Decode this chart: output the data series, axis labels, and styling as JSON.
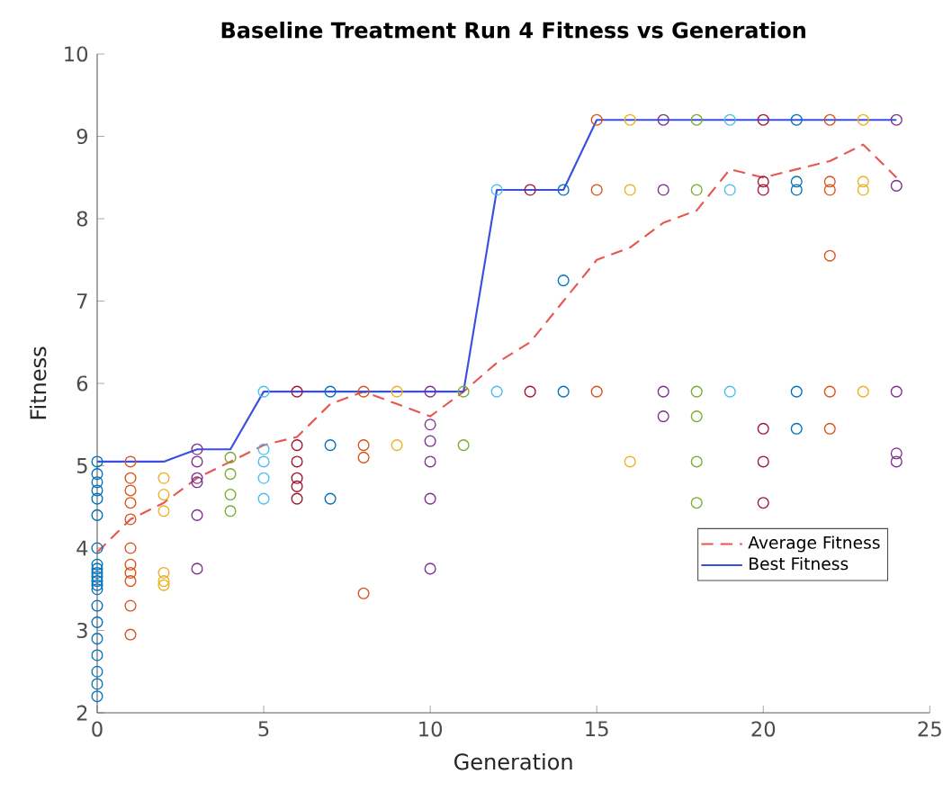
{
  "chart_data": {
    "type": "scatter",
    "title": "Baseline Treatment Run 4 Fitness vs Generation",
    "xlabel": "Generation",
    "ylabel": "Fitness",
    "xlim": [
      0,
      25
    ],
    "ylim": [
      2,
      10
    ],
    "xticks": [
      0,
      5,
      10,
      15,
      20,
      25
    ],
    "yticks": [
      2,
      3,
      4,
      5,
      6,
      7,
      8,
      9,
      10
    ],
    "legend": "bottom right",
    "grid": false,
    "series": [
      {
        "marker": "circle",
        "color": "#0072bd",
        "x": [
          0,
          0,
          0,
          0,
          0,
          0,
          0,
          0,
          0,
          0,
          0,
          0,
          0,
          0,
          0,
          0,
          0,
          0,
          0,
          0,
          0
        ],
        "values": [
          5.05,
          4.9,
          4.8,
          4.7,
          4.6,
          4.4,
          4.0,
          3.8,
          3.75,
          3.7,
          3.65,
          3.6,
          3.55,
          3.5,
          3.3,
          3.1,
          2.9,
          2.7,
          2.5,
          2.35,
          2.2
        ]
      },
      {
        "type": "scatter",
        "marker": "circle",
        "color": "#d95319",
        "x": [
          1,
          1,
          1,
          1,
          1,
          1,
          1,
          1,
          1,
          1,
          1
        ],
        "values": [
          5.05,
          4.85,
          4.7,
          4.55,
          4.35,
          4.0,
          3.8,
          3.7,
          3.6,
          3.3,
          2.95
        ]
      },
      {
        "type": "scatter",
        "marker": "circle",
        "color": "#edb120",
        "x": [
          2,
          2,
          2,
          2,
          2,
          2
        ],
        "values": [
          4.85,
          4.65,
          4.45,
          3.7,
          3.6,
          3.55
        ]
      },
      {
        "type": "scatter",
        "marker": "circle",
        "color": "#7e2f8e",
        "x": [
          3,
          3,
          3,
          3,
          3,
          3
        ],
        "values": [
          5.2,
          5.05,
          4.85,
          4.8,
          4.4,
          3.75
        ]
      },
      {
        "type": "scatter",
        "marker": "circle",
        "color": "#77ac30",
        "x": [
          4,
          4,
          4,
          4
        ],
        "values": [
          5.1,
          4.9,
          4.65,
          4.45
        ]
      },
      {
        "type": "scatter",
        "marker": "circle",
        "color": "#4dbeee",
        "x": [
          5,
          5,
          5,
          5,
          5
        ],
        "values": [
          5.9,
          5.2,
          5.05,
          4.85,
          4.6
        ]
      },
      {
        "type": "scatter",
        "marker": "circle",
        "color": "#a2142f",
        "x": [
          6,
          6,
          6,
          6,
          6,
          6
        ],
        "values": [
          5.9,
          5.25,
          5.05,
          4.85,
          4.75,
          4.6
        ]
      },
      {
        "type": "scatter",
        "marker": "circle",
        "color": "#0072bd",
        "x": [
          7,
          7,
          7
        ],
        "values": [
          5.9,
          5.25,
          4.6
        ]
      },
      {
        "type": "scatter",
        "marker": "circle",
        "color": "#d95319",
        "x": [
          8,
          8,
          8,
          8
        ],
        "values": [
          5.9,
          5.25,
          5.1,
          3.45
        ]
      },
      {
        "type": "scatter",
        "marker": "circle",
        "color": "#edb120",
        "x": [
          9,
          9
        ],
        "values": [
          5.9,
          5.25
        ]
      },
      {
        "type": "scatter",
        "marker": "circle",
        "color": "#7e2f8e",
        "x": [
          10,
          10,
          10,
          10,
          10,
          10
        ],
        "values": [
          5.9,
          5.5,
          5.3,
          5.05,
          4.6,
          3.75
        ]
      },
      {
        "type": "scatter",
        "marker": "circle",
        "color": "#77ac30",
        "x": [
          11,
          11
        ],
        "values": [
          5.9,
          5.25
        ]
      },
      {
        "type": "scatter",
        "marker": "circle",
        "color": "#4dbeee",
        "x": [
          12,
          12
        ],
        "values": [
          8.35,
          5.9
        ]
      },
      {
        "type": "scatter",
        "marker": "circle",
        "color": "#a2142f",
        "x": [
          13,
          13
        ],
        "values": [
          8.35,
          5.9
        ]
      },
      {
        "type": "scatter",
        "marker": "circle",
        "color": "#0072bd",
        "x": [
          14,
          14,
          14
        ],
        "values": [
          8.35,
          7.25,
          5.9
        ]
      },
      {
        "type": "scatter",
        "marker": "circle",
        "color": "#d95319",
        "x": [
          15,
          15,
          15
        ],
        "values": [
          9.2,
          8.35,
          5.9
        ]
      },
      {
        "type": "scatter",
        "marker": "circle",
        "color": "#edb120",
        "x": [
          16,
          16,
          16
        ],
        "values": [
          9.2,
          8.35,
          5.05
        ]
      },
      {
        "type": "scatter",
        "marker": "circle",
        "color": "#7e2f8e",
        "x": [
          17,
          17,
          17,
          17
        ],
        "values": [
          9.2,
          8.35,
          5.9,
          5.6
        ]
      },
      {
        "type": "scatter",
        "marker": "circle",
        "color": "#77ac30",
        "x": [
          18,
          18,
          18,
          18,
          18,
          18
        ],
        "values": [
          9.2,
          8.35,
          5.9,
          5.6,
          5.05,
          4.55
        ]
      },
      {
        "type": "scatter",
        "marker": "circle",
        "color": "#4dbeee",
        "x": [
          19,
          19,
          19
        ],
        "values": [
          9.2,
          8.35,
          5.9
        ]
      },
      {
        "type": "scatter",
        "marker": "circle",
        "color": "#a2142f",
        "x": [
          20,
          20,
          20,
          20,
          20,
          20
        ],
        "values": [
          9.2,
          8.45,
          8.35,
          5.45,
          5.05,
          4.55
        ]
      },
      {
        "type": "scatter",
        "marker": "circle",
        "color": "#0072bd",
        "x": [
          21,
          21,
          21,
          21,
          21
        ],
        "values": [
          9.2,
          8.45,
          8.35,
          5.9,
          5.45
        ]
      },
      {
        "type": "scatter",
        "marker": "circle",
        "color": "#d95319",
        "x": [
          22,
          22,
          22,
          22,
          22,
          22
        ],
        "values": [
          9.2,
          8.45,
          8.35,
          7.55,
          5.9,
          5.45
        ]
      },
      {
        "type": "scatter",
        "marker": "circle",
        "color": "#edb120",
        "x": [
          23,
          23,
          23,
          23
        ],
        "values": [
          9.2,
          8.45,
          8.35,
          5.9
        ]
      },
      {
        "type": "scatter",
        "marker": "circle",
        "color": "#7e2f8e",
        "x": [
          24,
          24,
          24,
          24,
          24
        ],
        "values": [
          9.2,
          8.4,
          5.9,
          5.15,
          5.05
        ]
      },
      {
        "type": "line",
        "marker": "none",
        "line_style": "dashed",
        "name": "Average Fitness",
        "color": "#e8574f",
        "x": [
          0,
          1,
          2,
          3,
          4,
          5,
          6,
          7,
          8,
          9,
          10,
          11,
          12,
          13,
          14,
          15,
          16,
          17,
          18,
          19,
          20,
          21,
          22,
          23,
          24
        ],
        "values": [
          3.95,
          4.35,
          4.55,
          4.85,
          5.05,
          5.25,
          5.35,
          5.75,
          5.9,
          5.75,
          5.6,
          5.9,
          6.25,
          6.5,
          7.0,
          7.5,
          7.65,
          7.95,
          8.1,
          8.6,
          8.5,
          8.6,
          8.7,
          8.9,
          8.5
        ]
      },
      {
        "type": "line",
        "marker": "none",
        "line_style": "solid",
        "name": "Best Fitness",
        "color": "#3a4fe0",
        "x": [
          0,
          1,
          2,
          3,
          4,
          5,
          6,
          7,
          8,
          9,
          10,
          11,
          12,
          13,
          14,
          15,
          16,
          17,
          18,
          19,
          20,
          21,
          22,
          23,
          24
        ],
        "values": [
          5.05,
          5.05,
          5.05,
          5.2,
          5.2,
          5.9,
          5.9,
          5.9,
          5.9,
          5.9,
          5.9,
          5.9,
          8.35,
          8.35,
          8.35,
          9.2,
          9.2,
          9.2,
          9.2,
          9.2,
          9.2,
          9.2,
          9.2,
          9.2,
          9.2
        ]
      }
    ]
  }
}
